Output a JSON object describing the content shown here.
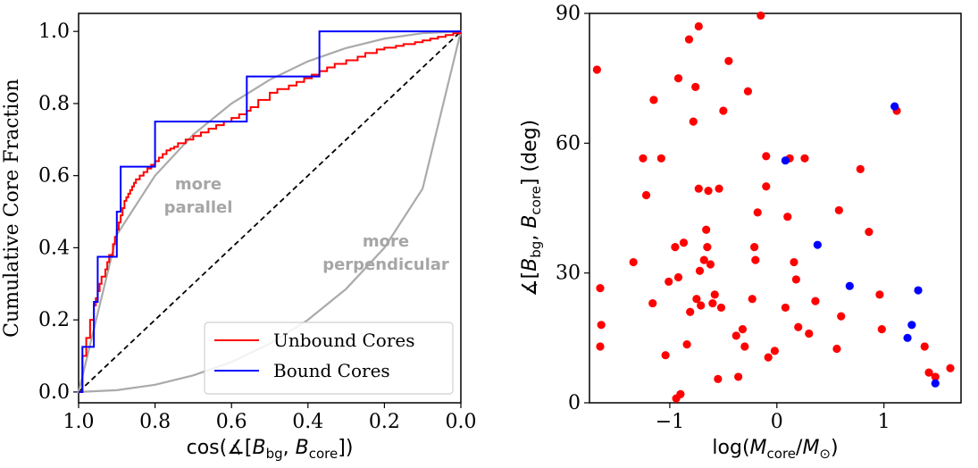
{
  "chart_data": [
    {
      "type": "line",
      "subtype": "cumulative-step",
      "xlabel": "cos(∡[B_bg, B_core])",
      "xlabel_parts": [
        "cos(∡[",
        "B",
        "bg",
        ", ",
        "B",
        "core",
        "])"
      ],
      "ylabel": "Cumulative Core Fraction",
      "xlim": [
        1.0,
        0.0
      ],
      "ylim": [
        -0.03,
        1.05
      ],
      "x_ticks": [
        1.0,
        0.8,
        0.6,
        0.4,
        0.2,
        0.0
      ],
      "x_tick_labels": [
        "1.0",
        "0.8",
        "0.6",
        "0.4",
        "0.2",
        "0.0"
      ],
      "y_ticks": [
        0.0,
        0.2,
        0.4,
        0.6,
        0.8,
        1.0
      ],
      "y_tick_labels": [
        "0.0",
        "0.2",
        "0.4",
        "0.6",
        "0.8",
        "1.0"
      ],
      "annotations": [
        {
          "lines": [
            "more",
            "parallel"
          ],
          "x": 0.63,
          "y": 0.57
        },
        {
          "lines": [
            "more",
            "perpendicular"
          ],
          "x": 0.22,
          "y": 0.38
        }
      ],
      "legend": {
        "position": "lower-right",
        "entries": [
          "Unbound Cores",
          "Bound Cores"
        ]
      },
      "series": [
        {
          "name": "Unbound Cores",
          "color": "#ff0000",
          "kind": "step",
          "x": [
            1.0,
            0.99,
            0.98,
            0.97,
            0.96,
            0.955,
            0.95,
            0.945,
            0.94,
            0.93,
            0.925,
            0.92,
            0.91,
            0.905,
            0.9,
            0.895,
            0.89,
            0.885,
            0.88,
            0.875,
            0.87,
            0.865,
            0.86,
            0.855,
            0.85,
            0.84,
            0.83,
            0.82,
            0.81,
            0.8,
            0.79,
            0.78,
            0.77,
            0.76,
            0.75,
            0.74,
            0.72,
            0.7,
            0.68,
            0.66,
            0.64,
            0.62,
            0.6,
            0.58,
            0.56,
            0.55,
            0.53,
            0.5,
            0.48,
            0.45,
            0.43,
            0.41,
            0.39,
            0.37,
            0.35,
            0.33,
            0.3,
            0.27,
            0.25,
            0.22,
            0.2,
            0.17,
            0.15,
            0.12,
            0.1,
            0.08,
            0.06,
            0.04,
            0.02,
            0.0
          ],
          "y": [
            0.0,
            0.1,
            0.15,
            0.2,
            0.24,
            0.26,
            0.28,
            0.3,
            0.32,
            0.34,
            0.36,
            0.38,
            0.41,
            0.43,
            0.45,
            0.47,
            0.49,
            0.51,
            0.53,
            0.54,
            0.55,
            0.56,
            0.57,
            0.58,
            0.59,
            0.6,
            0.61,
            0.62,
            0.63,
            0.64,
            0.65,
            0.66,
            0.67,
            0.675,
            0.68,
            0.69,
            0.7,
            0.71,
            0.72,
            0.73,
            0.74,
            0.75,
            0.76,
            0.77,
            0.78,
            0.79,
            0.81,
            0.83,
            0.84,
            0.85,
            0.86,
            0.87,
            0.88,
            0.89,
            0.9,
            0.91,
            0.92,
            0.93,
            0.94,
            0.95,
            0.955,
            0.96,
            0.965,
            0.97,
            0.975,
            0.98,
            0.985,
            0.99,
            0.995,
            1.0
          ]
        },
        {
          "name": "Bound Cores",
          "color": "#0000ff",
          "kind": "step",
          "x": [
            1.0,
            0.99,
            0.96,
            0.95,
            0.9,
            0.89,
            0.87,
            0.8,
            0.56,
            0.37,
            0.0
          ],
          "y": [
            0.0,
            0.125,
            0.25,
            0.375,
            0.5,
            0.625,
            0.625,
            0.75,
            0.875,
            1.0,
            1.0
          ]
        },
        {
          "name": "reference-uniform",
          "color": "#000000",
          "kind": "dashed-line",
          "x": [
            1.0,
            0.0
          ],
          "y": [
            0.0,
            1.0
          ]
        },
        {
          "name": "reference-parallel",
          "color": "#aaaaaa",
          "kind": "curve",
          "x": [
            1.0,
            0.9,
            0.8,
            0.7,
            0.6,
            0.5,
            0.4,
            0.3,
            0.2,
            0.1,
            0.0
          ],
          "y": [
            0.0,
            0.436,
            0.6,
            0.714,
            0.8,
            0.866,
            0.917,
            0.954,
            0.98,
            0.995,
            1.0
          ]
        },
        {
          "name": "reference-perpendicular",
          "color": "#aaaaaa",
          "kind": "curve",
          "x": [
            1.0,
            0.9,
            0.8,
            0.7,
            0.6,
            0.5,
            0.4,
            0.3,
            0.2,
            0.1,
            0.0
          ],
          "y": [
            0.0,
            0.005,
            0.02,
            0.046,
            0.083,
            0.134,
            0.2,
            0.286,
            0.4,
            0.564,
            1.0
          ]
        }
      ]
    },
    {
      "type": "scatter",
      "xlabel": "log(M_core/M_⊙)",
      "xlabel_parts": [
        "log(",
        "M",
        "core",
        "/",
        "M",
        "⊙",
        ")"
      ],
      "ylabel": "∡[B_bg, B_core] (deg)",
      "ylabel_parts": [
        "∡[",
        "B",
        "bg",
        ", ",
        "B",
        "core",
        "] (deg)"
      ],
      "xlim": [
        -1.75,
        1.72
      ],
      "ylim": [
        0,
        90
      ],
      "x_ticks": [
        -1,
        0,
        1
      ],
      "x_tick_labels": [
        "−1",
        "0",
        "1"
      ],
      "y_ticks": [
        0,
        30,
        60,
        90
      ],
      "y_tick_labels": [
        "0",
        "30",
        "60",
        "90"
      ],
      "series": [
        {
          "name": "Unbound Cores",
          "color": "#ff0000",
          "x": [
            -1.68,
            -1.65,
            -1.64,
            -1.65,
            -1.34,
            -1.25,
            -1.22,
            -1.15,
            -1.16,
            -1.08,
            -1.04,
            -1.01,
            -0.94,
            -0.92,
            -0.92,
            -0.9,
            -0.87,
            -0.84,
            -0.82,
            -0.81,
            -0.78,
            -0.76,
            -0.75,
            -0.73,
            -0.73,
            -0.71,
            -0.68,
            -0.66,
            -0.64,
            -0.62,
            -0.6,
            -0.58,
            -0.55,
            -0.54,
            -0.52,
            -0.5,
            -0.45,
            -0.38,
            -0.36,
            -0.32,
            -0.3,
            -0.27,
            -0.23,
            -0.21,
            -0.2,
            -0.18,
            -0.15,
            -0.1,
            -0.1,
            -0.08,
            -0.02,
            0.08,
            0.1,
            0.12,
            0.16,
            0.18,
            0.2,
            0.26,
            0.3,
            0.36,
            0.56,
            0.58,
            0.6,
            0.78,
            0.86,
            0.96,
            0.98,
            1.12,
            1.38,
            1.42,
            1.48,
            1.62,
            -0.95,
            -0.65,
            -0.72
          ],
          "y": [
            77,
            26.5,
            18,
            13,
            32.5,
            56.5,
            48,
            70,
            23,
            56.5,
            11,
            28,
            1,
            29,
            75,
            2,
            37,
            13.5,
            84,
            21,
            65,
            73,
            24,
            49.5,
            87,
            22.5,
            33,
            40,
            49,
            32,
            23,
            25,
            5.5,
            49.5,
            22,
            67.5,
            79,
            15.5,
            6,
            17,
            13,
            72,
            24,
            36,
            33,
            44,
            89.5,
            57,
            50,
            10.5,
            12,
            22,
            43,
            56.5,
            32.5,
            28.5,
            17.5,
            56.5,
            16,
            23.5,
            12.5,
            44.5,
            20,
            54,
            39.5,
            25,
            17,
            67.5,
            13,
            7,
            6,
            8,
            36,
            36,
            30.5
          ]
        },
        {
          "name": "Bound Cores",
          "color": "#0000ff",
          "x": [
            1.1,
            0.08,
            0.38,
            0.68,
            1.32,
            1.26,
            1.22,
            1.48
          ],
          "y": [
            68.5,
            56,
            36.5,
            27,
            26,
            18,
            15,
            4.5
          ]
        }
      ]
    }
  ]
}
